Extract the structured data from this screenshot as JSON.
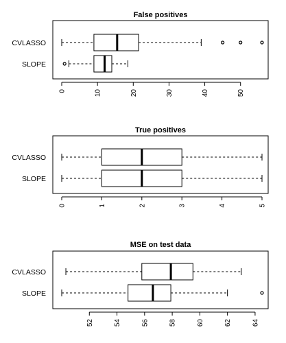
{
  "chart_data": [
    {
      "type": "boxplot",
      "title": "False positives",
      "orientation": "horizontal",
      "xlim": [
        0,
        56
      ],
      "xticks": [
        0,
        10,
        20,
        30,
        40,
        50
      ],
      "grid": false,
      "categories": [
        "CVLASSO",
        "SLOPE"
      ],
      "boxes": [
        {
          "label": "CVLASSO",
          "whisker_low": 0,
          "q1": 9,
          "median": 15.5,
          "q3": 21.5,
          "whisker_high": 39,
          "outliers": [
            45,
            50,
            56
          ]
        },
        {
          "label": "SLOPE",
          "whisker_low": 2,
          "q1": 9,
          "median": 12,
          "q3": 14,
          "whisker_high": 18.5,
          "outliers": [
            0.8
          ]
        }
      ]
    },
    {
      "type": "boxplot",
      "title": "True positives",
      "orientation": "horizontal",
      "xlim": [
        0,
        5
      ],
      "xticks": [
        0,
        1,
        2,
        3,
        4,
        5
      ],
      "grid": false,
      "categories": [
        "CVLASSO",
        "SLOPE"
      ],
      "boxes": [
        {
          "label": "CVLASSO",
          "whisker_low": 0,
          "q1": 1,
          "median": 2,
          "q3": 3,
          "whisker_high": 5,
          "outliers": []
        },
        {
          "label": "SLOPE",
          "whisker_low": 0,
          "q1": 1,
          "median": 2,
          "q3": 3,
          "whisker_high": 5,
          "outliers": []
        }
      ]
    },
    {
      "type": "boxplot",
      "title": "MSE on test data",
      "orientation": "horizontal",
      "xlim": [
        50,
        64.8
      ],
      "xticks": [
        52,
        54,
        56,
        58,
        60,
        62,
        64
      ],
      "grid": false,
      "categories": [
        "CVLASSO",
        "SLOPE"
      ],
      "boxes": [
        {
          "label": "CVLASSO",
          "whisker_low": 50.3,
          "q1": 55.8,
          "median": 57.9,
          "q3": 59.5,
          "whisker_high": 63,
          "outliers": []
        },
        {
          "label": "SLOPE",
          "whisker_low": 50,
          "q1": 54.8,
          "median": 56.6,
          "q3": 57.9,
          "whisker_high": 62,
          "outliers": [
            64.5
          ]
        }
      ]
    }
  ]
}
